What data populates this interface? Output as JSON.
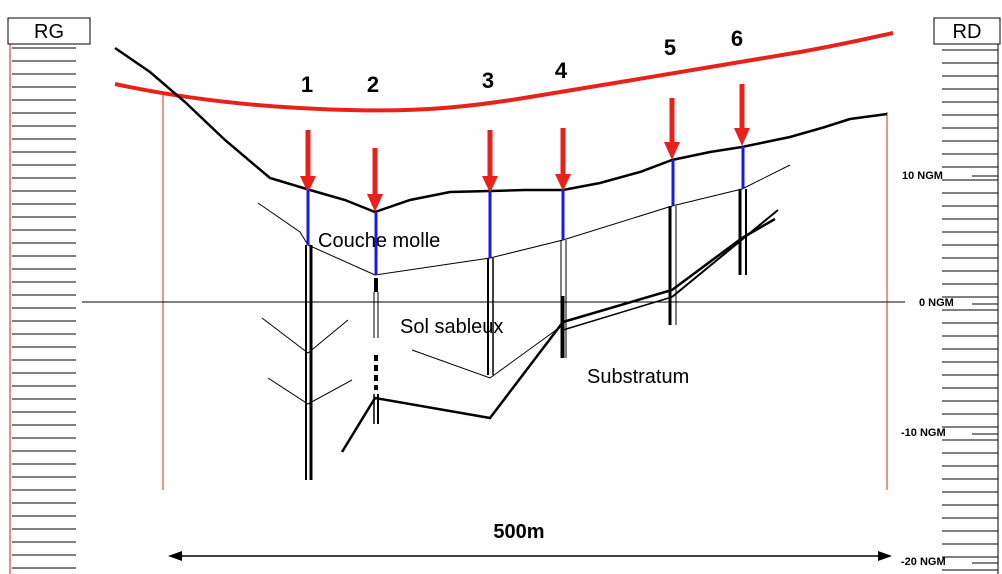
{
  "banks": {
    "left": "RG",
    "right": "RD"
  },
  "boreholes": [
    {
      "id": "borehole-1",
      "label": "1"
    },
    {
      "id": "borehole-2",
      "label": "2"
    },
    {
      "id": "borehole-3",
      "label": "3"
    },
    {
      "id": "borehole-4",
      "label": "4"
    },
    {
      "id": "borehole-5",
      "label": "5"
    },
    {
      "id": "borehole-6",
      "label": "6"
    }
  ],
  "layers": {
    "soft": "Couche molle",
    "sand": "Sol sableux",
    "substratum": "Substratum"
  },
  "elevation_scale": {
    "ticks": [
      "10 NGM",
      "0 NGM",
      "-10 NGM",
      "-20 NGM"
    ]
  },
  "distance": "500m",
  "colors": {
    "embankment": "#e8211b",
    "arrow": "#e8211b",
    "soft_layer": "#1a1ae6",
    "line": "#000000"
  }
}
